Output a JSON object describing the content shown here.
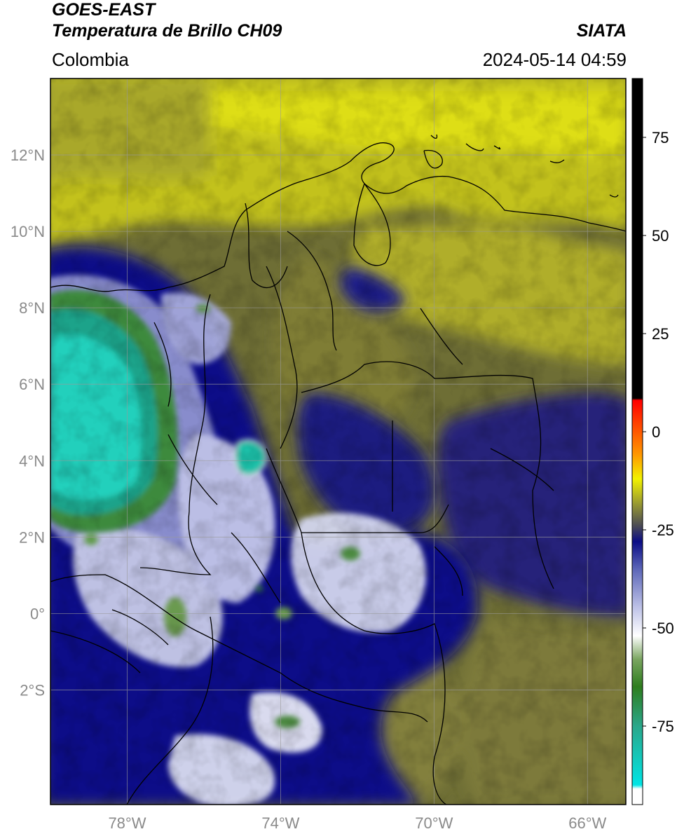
{
  "header": {
    "satellite": "GOES-EAST",
    "product": "Temperatura de Brillo CH09",
    "region": "Colombia",
    "brand": "SIATA",
    "timestamp": "2024-05-14 04:59"
  },
  "map": {
    "lon_range": [
      -80,
      -65
    ],
    "lat_range": [
      -5,
      14
    ],
    "lon_ticks": [
      {
        "value": -78,
        "label": "78°W"
      },
      {
        "value": -74,
        "label": "74°W"
      },
      {
        "value": -70,
        "label": "70°W"
      },
      {
        "value": -66,
        "label": "66°W"
      }
    ],
    "lat_ticks": [
      {
        "value": 12,
        "label": "12°N"
      },
      {
        "value": 10,
        "label": "10°N"
      },
      {
        "value": 8,
        "label": "8°N"
      },
      {
        "value": 6,
        "label": "6°N"
      },
      {
        "value": 4,
        "label": "4°N"
      },
      {
        "value": 2,
        "label": "2°N"
      },
      {
        "value": 0,
        "label": "0°"
      },
      {
        "value": -2,
        "label": "2°S"
      }
    ]
  },
  "colorbar": {
    "range": [
      -95,
      90
    ],
    "ticks": [
      {
        "value": 75,
        "label": "75"
      },
      {
        "value": 50,
        "label": "50"
      },
      {
        "value": 25,
        "label": "25"
      },
      {
        "value": 0,
        "label": "0"
      },
      {
        "value": -25,
        "label": "-25"
      },
      {
        "value": -50,
        "label": "-50"
      },
      {
        "value": -75,
        "label": "-75"
      }
    ],
    "stops": [
      {
        "value": -95,
        "color": "#ffffff"
      },
      {
        "value": -91,
        "color": "#ffffff"
      },
      {
        "value": -90,
        "color": "#00e5e5"
      },
      {
        "value": -75,
        "color": "#2aa78a"
      },
      {
        "value": -65,
        "color": "#2e7d1e"
      },
      {
        "value": -58,
        "color": "#7aa560"
      },
      {
        "value": -52,
        "color": "#ffffff"
      },
      {
        "value": -45,
        "color": "#c0c4e8"
      },
      {
        "value": -35,
        "color": "#5c66b8"
      },
      {
        "value": -28,
        "color": "#0b0d86"
      },
      {
        "value": -24,
        "color": "#4a4a55"
      },
      {
        "value": -18,
        "color": "#9d9e30"
      },
      {
        "value": -12,
        "color": "#f2f200"
      },
      {
        "value": -6,
        "color": "#ff9a00"
      },
      {
        "value": 8,
        "color": "#ff0000"
      },
      {
        "value": 8.5,
        "color": "#000000"
      },
      {
        "value": 90,
        "color": "#000000"
      }
    ]
  },
  "colors": {
    "cold_core": "#1fd6c0",
    "deep_convection": "#0b0d86",
    "clear_warm": "#9d9e30",
    "upper_dry": "#d8d80e",
    "border": "#000000",
    "grid": "#9a9a9a"
  },
  "icons": {
    "map_lines": "coastline-and-border-lines",
    "legend": "temperature-colorbar"
  }
}
